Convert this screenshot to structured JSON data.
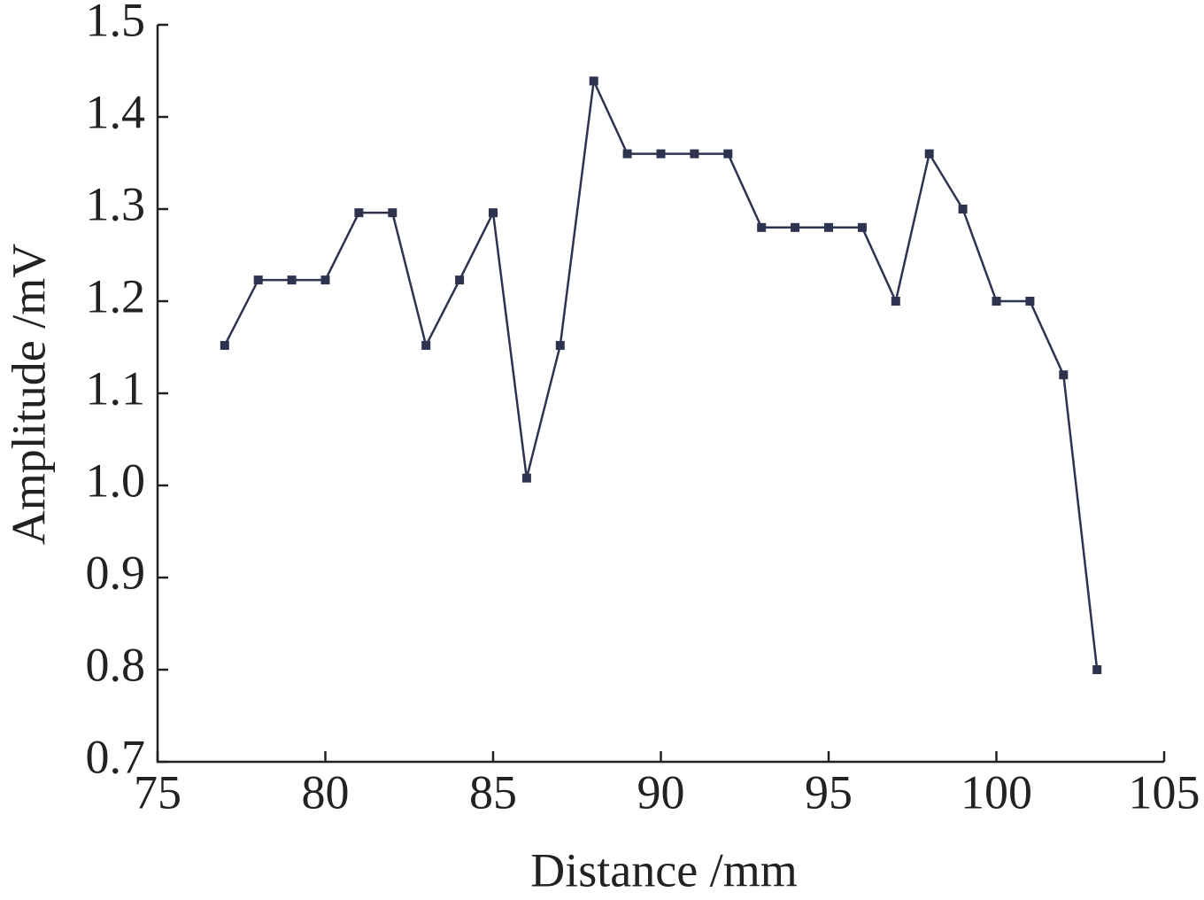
{
  "chart_data": {
    "type": "line",
    "x_label": "Distance /mm",
    "y_label": "Amplitude /mV",
    "x": [
      77,
      78,
      79,
      80,
      81,
      82,
      83,
      84,
      85,
      86,
      87,
      88,
      89,
      90,
      91,
      92,
      93,
      94,
      95,
      96,
      97,
      98,
      99,
      100,
      101,
      102,
      103
    ],
    "values": [
      1.152,
      1.223,
      1.223,
      1.223,
      1.296,
      1.296,
      1.152,
      1.223,
      1.296,
      1.008,
      1.152,
      1.439,
      1.36,
      1.36,
      1.36,
      1.36,
      1.28,
      1.28,
      1.28,
      1.28,
      1.2,
      1.36,
      1.3,
      1.2,
      1.2,
      1.12,
      0.8
    ],
    "color": "#2e3350",
    "xlim": [
      75,
      105
    ],
    "xticks": [
      75,
      80,
      85,
      90,
      95,
      100,
      105
    ],
    "ylim": [
      0.7,
      1.5
    ],
    "yticks": [
      0.7,
      0.8,
      0.9,
      {
        "value": 1,
        "label": "1.0"
      },
      1.1,
      1.2,
      1.3,
      1.4,
      1.5
    ]
  }
}
